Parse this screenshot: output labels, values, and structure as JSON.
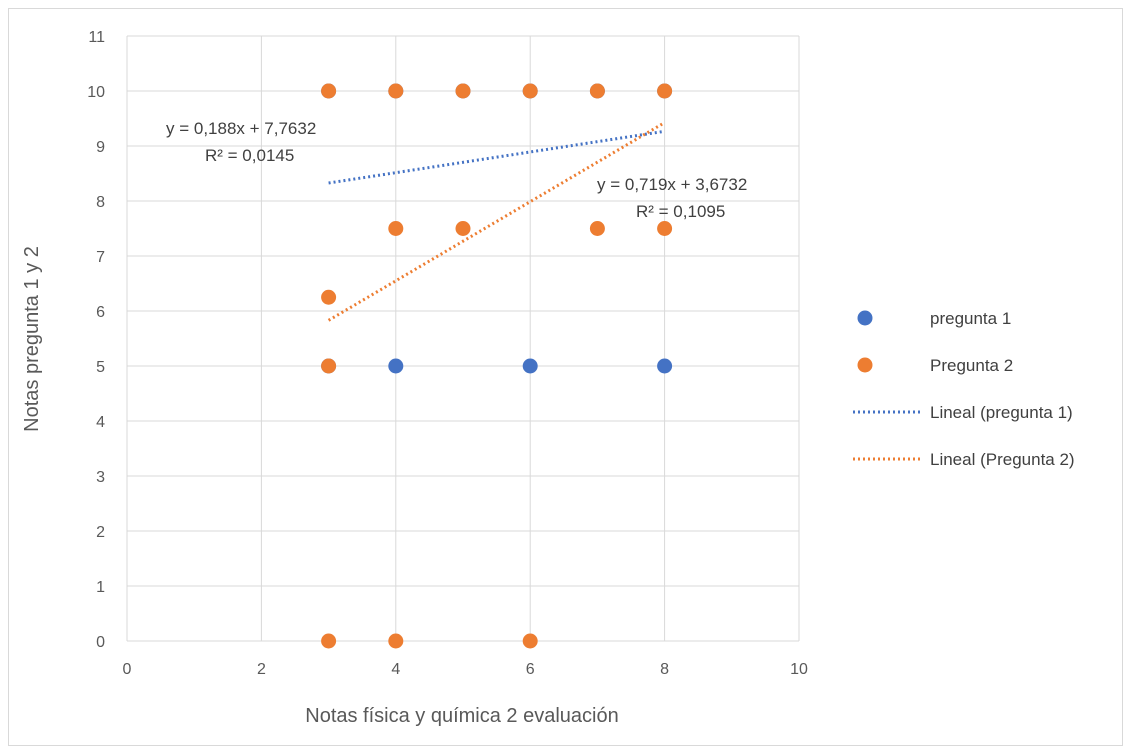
{
  "chart_data": {
    "type": "scatter",
    "title": "",
    "xlabel": "Notas física y química 2 evaluación",
    "ylabel": "Notas pregunta 1 y 2",
    "xlim": [
      0,
      10
    ],
    "ylim": [
      0,
      11
    ],
    "x_ticks": [
      0,
      2,
      4,
      6,
      8,
      10
    ],
    "y_ticks": [
      0,
      1,
      2,
      3,
      4,
      5,
      6,
      7,
      8,
      9,
      10,
      11
    ],
    "grid": true,
    "legend_position": "right",
    "series": [
      {
        "name": "pregunta 1",
        "color": "#4472C4",
        "points": [
          [
            3,
            10
          ],
          [
            4,
            10
          ],
          [
            5,
            10
          ],
          [
            6,
            10
          ],
          [
            7,
            10
          ],
          [
            8,
            10
          ],
          [
            3,
            5
          ],
          [
            4,
            5
          ],
          [
            6,
            5
          ],
          [
            8,
            5
          ]
        ]
      },
      {
        "name": "Pregunta 2",
        "color": "#ED7D31",
        "points": [
          [
            3,
            10
          ],
          [
            4,
            10
          ],
          [
            5,
            10
          ],
          [
            6,
            10
          ],
          [
            7,
            10
          ],
          [
            8,
            10
          ],
          [
            4,
            7.5
          ],
          [
            5,
            7.5
          ],
          [
            7,
            7.5
          ],
          [
            8,
            7.5
          ],
          [
            3,
            6.25
          ],
          [
            3,
            5
          ],
          [
            3,
            0
          ],
          [
            4,
            0
          ],
          [
            6,
            0
          ]
        ]
      }
    ],
    "trendlines": [
      {
        "name": "Lineal (pregunta 1)",
        "color": "#4472C4",
        "slope": 0.188,
        "intercept": 7.7632,
        "x_range": [
          3,
          8
        ],
        "equation": "y = 0,188x + 7,7632",
        "r2": "R² = 0,0145"
      },
      {
        "name": "Lineal (Pregunta 2)",
        "color": "#ED7D31",
        "slope": 0.719,
        "intercept": 3.6732,
        "x_range": [
          3,
          8
        ],
        "equation": "y = 0,719x + 3,6732",
        "r2": "R² = 0,1095"
      }
    ]
  }
}
